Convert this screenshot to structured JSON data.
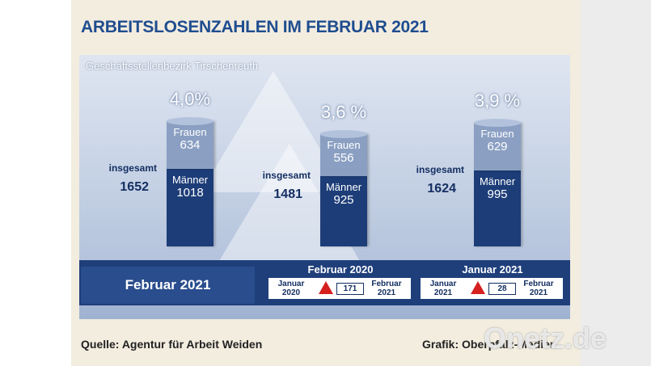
{
  "title": "ARBEITSLOSENZAHLEN IM FEBRUAR 2021",
  "chart_data": {
    "type": "bar",
    "subtitle": "Geschäftsstellenbezirk Tirschenreuth",
    "total_label": "insgesamt",
    "totals": [
      1652,
      1481,
      1624
    ],
    "rates": {
      "values": [
        4.0,
        3.6,
        3.9
      ],
      "value_labels": [
        "4,0%",
        "3,6 %",
        "3,9 %"
      ]
    },
    "series": [
      {
        "name": "Männer",
        "color": "#1d3d78",
        "values": [
          1018,
          925,
          995
        ]
      },
      {
        "name": "Frauen",
        "color": "#8a9fc2",
        "values": [
          634,
          556,
          629
        ]
      }
    ]
  },
  "footer": {
    "period": "Februar 2021",
    "comparisons": [
      {
        "title": "Februar 2020",
        "from": "Januar 2020",
        "change": 171,
        "to": "Februar 2021"
      },
      {
        "title": "Januar 2021",
        "from": "Januar 2021",
        "change": 28,
        "to": "Februar 2021"
      }
    ],
    "source": "Quelle: Agentur für Arbeit Weiden",
    "credit": "Grafik: Oberpfalz-Medien"
  },
  "watermark": "Onetz.de"
}
